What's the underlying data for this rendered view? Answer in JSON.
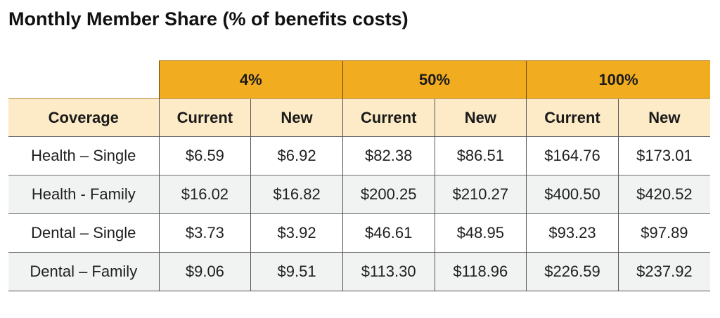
{
  "title": "Monthly Member Share (% of benefits costs)",
  "groups": [
    "4%",
    "50%",
    "100%"
  ],
  "columns": {
    "coverage": "Coverage",
    "current": "Current",
    "new": "New"
  },
  "rows": [
    {
      "coverage": "Health – Single",
      "values": [
        "$6.59",
        "$6.92",
        "$82.38",
        "$86.51",
        "$164.76",
        "$173.01"
      ]
    },
    {
      "coverage": "Health - Family",
      "values": [
        "$16.02",
        "$16.82",
        "$200.25",
        "$210.27",
        "$400.50",
        "$420.52"
      ]
    },
    {
      "coverage": "Dental – Single",
      "values": [
        "$3.73",
        "$3.92",
        "$46.61",
        "$48.95",
        "$93.23",
        "$97.89"
      ]
    },
    {
      "coverage": "Dental – Family",
      "values": [
        "$9.06",
        "$9.51",
        "$113.30",
        "$118.96",
        "$226.59",
        "$237.92"
      ]
    }
  ],
  "colors": {
    "group_header": "#f2ac1f",
    "column_header": "#fcebc6",
    "alt_row": "#f1f3f2"
  }
}
